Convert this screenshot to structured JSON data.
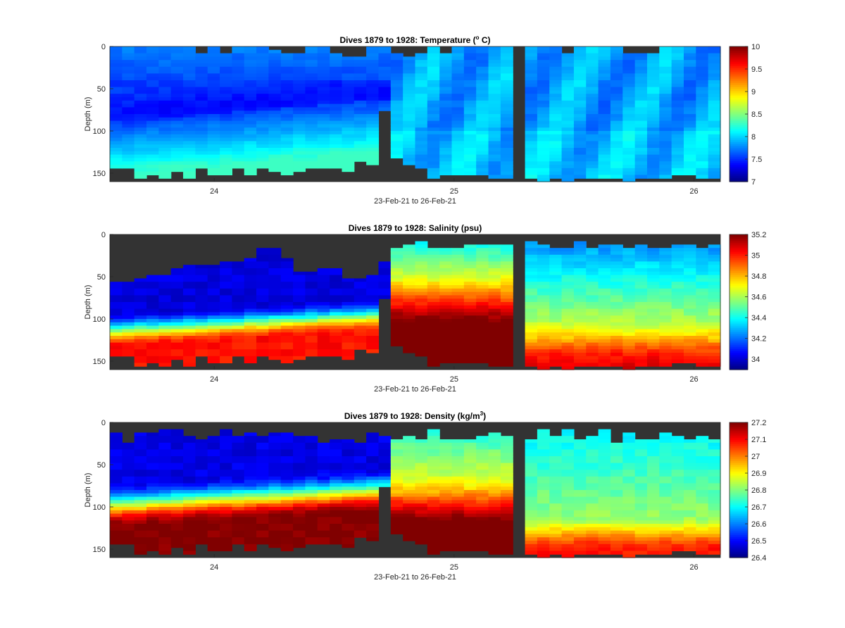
{
  "figure": {
    "background": "#ffffff",
    "no_data_color": "#333333",
    "colormap": "jet"
  },
  "chart_data": [
    {
      "type": "heatmap",
      "title": "Dives 1879 to 1928: Temperature (",
      "title_sup": "o",
      "title_end": " C)",
      "xlabel": "23-Feb-21 to 26-Feb-21",
      "ylabel": "Depth (m)",
      "x_ticks": [
        "24",
        "25",
        "26"
      ],
      "x_tick_values": [
        24,
        25,
        26
      ],
      "xlim": [
        23.565,
        26.11
      ],
      "y_ticks": [
        "0",
        "50",
        "100",
        "150"
      ],
      "y_tick_values": [
        0,
        50,
        100,
        150
      ],
      "ylim": [
        0,
        160
      ],
      "y_reversed": true,
      "colorbar_range": [
        7,
        10
      ],
      "colorbar_ticks": [
        "7",
        "7.5",
        "8",
        "8.5",
        "9",
        "9.5",
        "10"
      ],
      "colorbar_tick_values": [
        7,
        7.5,
        8,
        8.5,
        9,
        9.5,
        10
      ],
      "n_dives": 50
    },
    {
      "type": "heatmap",
      "title": "Dives 1879 to 1928: Salinity (psu)",
      "title_sup": "",
      "title_end": "",
      "xlabel": "23-Feb-21 to 26-Feb-21",
      "ylabel": "Depth (m)",
      "x_ticks": [
        "24",
        "25",
        "26"
      ],
      "x_tick_values": [
        24,
        25,
        26
      ],
      "xlim": [
        23.565,
        26.11
      ],
      "y_ticks": [
        "0",
        "50",
        "100",
        "150"
      ],
      "y_tick_values": [
        0,
        50,
        100,
        150
      ],
      "ylim": [
        0,
        160
      ],
      "y_reversed": true,
      "colorbar_range": [
        33.9,
        35.2
      ],
      "colorbar_ticks": [
        "34",
        "34.2",
        "34.4",
        "34.6",
        "34.8",
        "35",
        "35.2"
      ],
      "colorbar_tick_values": [
        34,
        34.2,
        34.4,
        34.6,
        34.8,
        35,
        35.2
      ],
      "n_dives": 50
    },
    {
      "type": "heatmap",
      "title": "Dives 1879 to 1928: Density (kg/m",
      "title_sup": "3",
      "title_end": ")",
      "xlabel": "23-Feb-21 to 26-Feb-21",
      "ylabel": "Depth (m)",
      "x_ticks": [
        "24",
        "25",
        "26"
      ],
      "x_tick_values": [
        24,
        25,
        26
      ],
      "xlim": [
        23.565,
        26.11
      ],
      "y_ticks": [
        "0",
        "50",
        "100",
        "150"
      ],
      "y_tick_values": [
        0,
        50,
        100,
        150
      ],
      "ylim": [
        0,
        160
      ],
      "y_reversed": true,
      "colorbar_range": [
        26.4,
        27.2
      ],
      "colorbar_ticks": [
        "26.4",
        "26.5",
        "26.6",
        "26.7",
        "26.8",
        "26.9",
        "27",
        "27.1",
        "27.2"
      ],
      "colorbar_tick_values": [
        26.4,
        26.5,
        26.6,
        26.7,
        26.8,
        26.9,
        27,
        27.1,
        27.2
      ],
      "n_dives": 50
    }
  ]
}
